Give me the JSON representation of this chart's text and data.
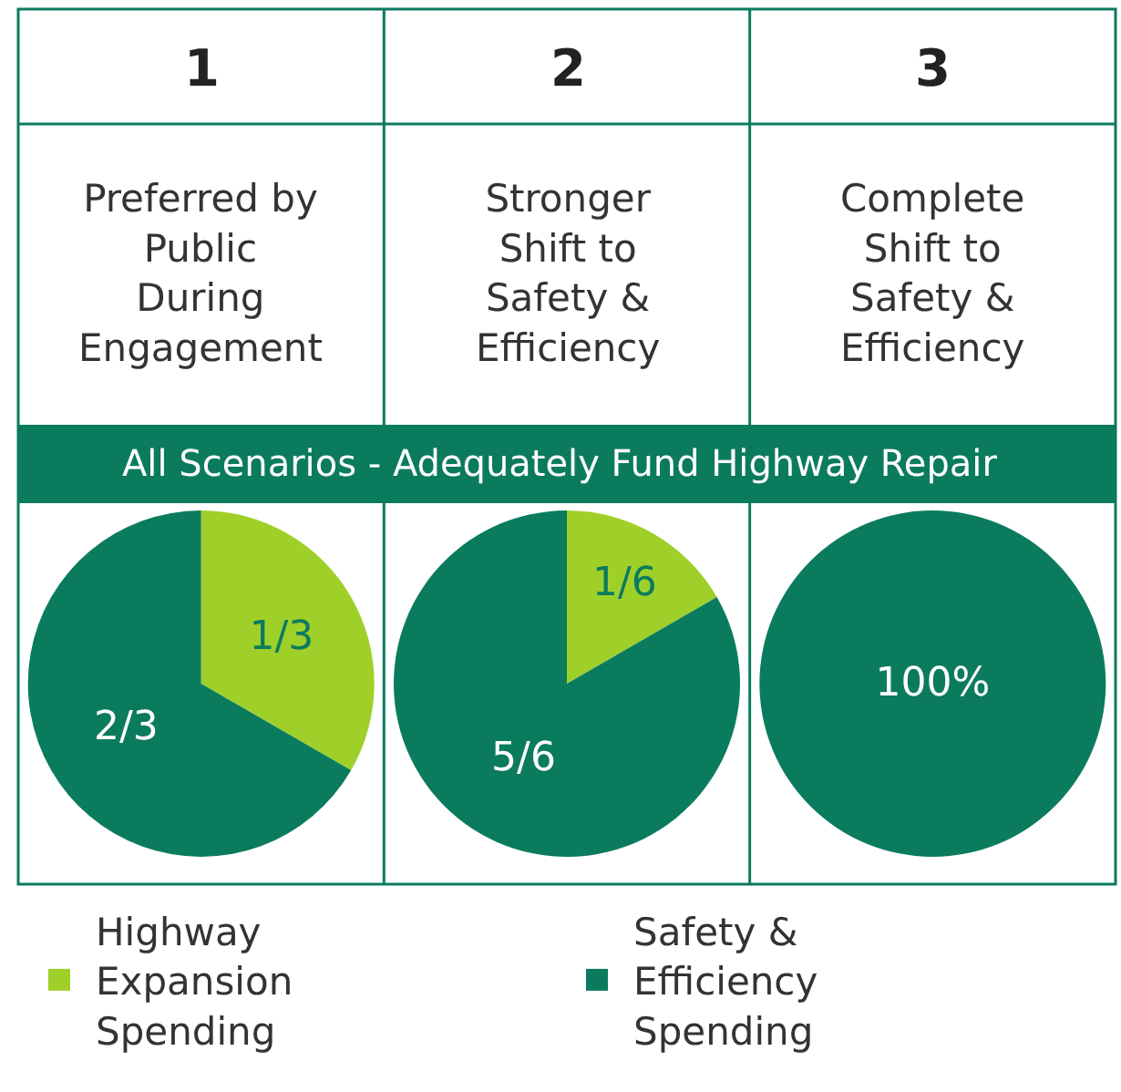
{
  "chart_data": [
    {
      "type": "pie",
      "title": "1",
      "subtitle": "Preferred by\nPublic\nDuring\nEngagement",
      "annotations": [
        "All Scenarios - Adequately Fund Highway Repair"
      ],
      "categories": [
        "Highway\nExpansion\nSpending",
        "Safety &\nEfficiency\nSpending"
      ],
      "values": [
        0.3333,
        0.6667
      ],
      "value_labels": [
        "1/3",
        "2/3"
      ],
      "colors": [
        "#9fd02a",
        "#0b7b5e"
      ],
      "legend": "bottom"
    },
    {
      "type": "pie",
      "title": "2",
      "subtitle": "Stronger\nShift to\nSafety &\nEfficiency",
      "values": [
        0.1667,
        0.8333
      ],
      "value_labels": [
        "1/6",
        "5/6"
      ],
      "colors": [
        "#9fd02a",
        "#0b7b5e"
      ]
    },
    {
      "type": "pie",
      "title": "3",
      "subtitle": "Complete\nShift to\nSafety &\nEfficiency",
      "values": [
        0,
        100
      ],
      "value_labels": [
        null,
        "100%"
      ],
      "colors": [
        "#9fd02a",
        "#0b7b5e"
      ]
    }
  ]
}
